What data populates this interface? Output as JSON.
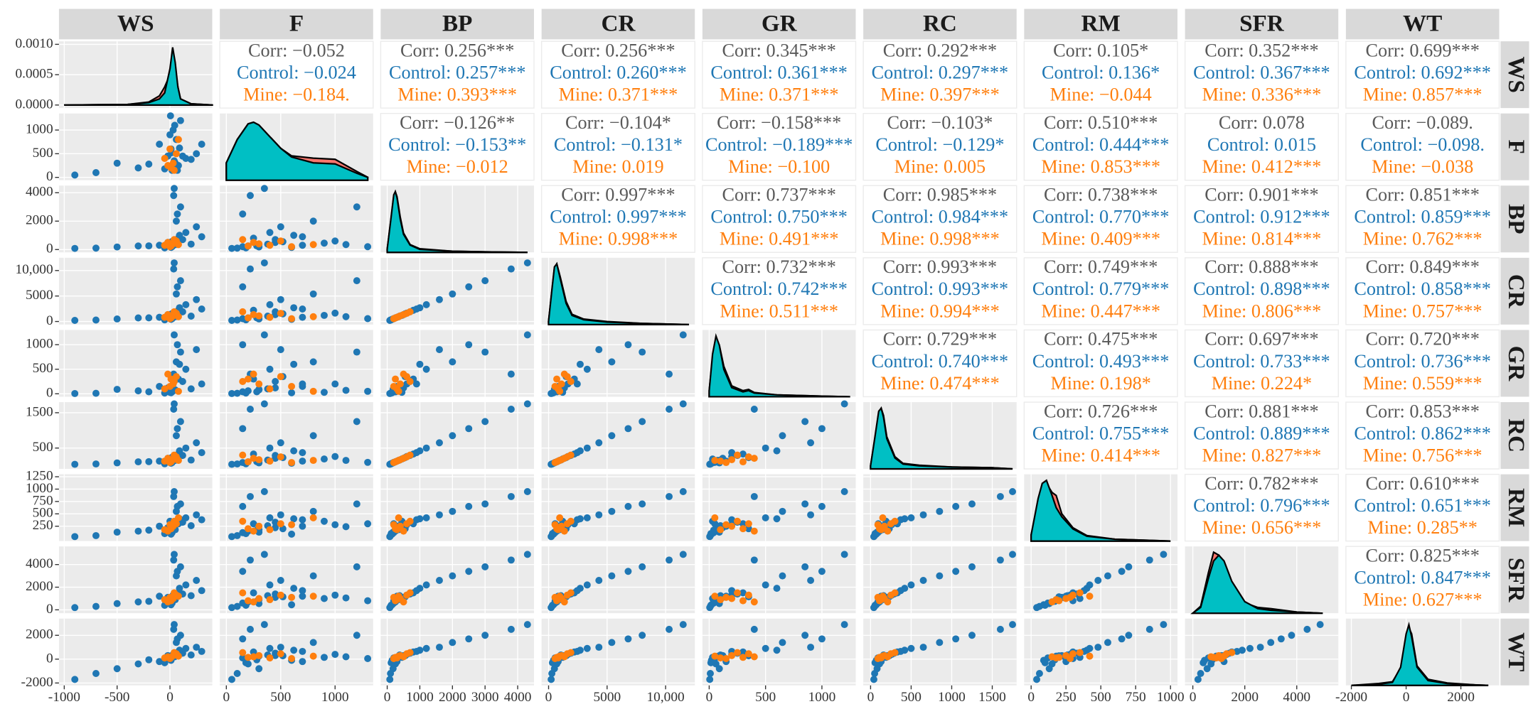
{
  "chart_data": {
    "type": "pairs",
    "variables": [
      {
        "name": "WS",
        "xlim": [
          -1050,
          400
        ],
        "xticks": [
          -1000,
          -500,
          0
        ],
        "ylim": [
          -5e-05,
          0.00105
        ],
        "yticks": [
          {
            "value": 0,
            "label": "0.0000"
          },
          {
            "value": 0.0005,
            "label": "0.0005"
          },
          {
            "value": 0.001,
            "label": "0.0010"
          }
        ]
      },
      {
        "name": "F",
        "xlim": [
          -60,
          1350
        ],
        "xticks": [
          0,
          500,
          1000
        ],
        "ylim": [
          -60,
          1350
        ],
        "yticks": [
          0,
          500,
          1000
        ]
      },
      {
        "name": "BP",
        "xlim": [
          -200,
          4500
        ],
        "xticks": [
          0,
          1000,
          2000,
          3000,
          4000
        ],
        "ylim": [
          -200,
          4500
        ],
        "yticks": [
          0,
          2000,
          4000
        ]
      },
      {
        "name": "CR",
        "xlim": [
          -600,
          12500
        ],
        "xticks": [
          0,
          5000,
          {
            "value": 10000,
            "label": "10,000"
          }
        ],
        "ylim": [
          -600,
          12500
        ],
        "yticks": [
          0,
          5000,
          {
            "value": 10000,
            "label": "10,000"
          }
        ]
      },
      {
        "name": "GR",
        "xlim": [
          -60,
          1300
        ],
        "xticks": [
          0,
          500,
          1000
        ],
        "ylim": [
          -60,
          1300
        ],
        "yticks": [
          0,
          500,
          1000
        ]
      },
      {
        "name": "RC",
        "xlim": [
          -90,
          1800
        ],
        "xticks": [
          0,
          500,
          1000,
          1500
        ],
        "ylim": [
          -90,
          1800
        ],
        "yticks": [
          500,
          1500
        ]
      },
      {
        "name": "RM",
        "xlim": [
          -50,
          1050
        ],
        "xticks": [
          0,
          250,
          500,
          750,
          1000
        ],
        "ylim": [
          -50,
          1300
        ],
        "yticks": [
          250,
          500,
          750,
          1000,
          1250
        ]
      },
      {
        "name": "SFR",
        "xlim": [
          -300,
          5600
        ],
        "xticks": [
          0,
          2000,
          4000
        ],
        "ylim": [
          -300,
          5600
        ],
        "yticks": [
          0,
          2000,
          4000
        ]
      },
      {
        "name": "WT",
        "xlim": [
          -2200,
          3400
        ],
        "xticks": [
          -2000,
          0,
          2000
        ],
        "ylim": [
          -2200,
          3400
        ],
        "yticks": [
          -2000,
          0,
          2000
        ]
      }
    ],
    "upper": [
      [
        [
          "Corr: −0.052",
          "Control: −0.024",
          "Mine: −0.184."
        ],
        [
          "Corr: 0.256***",
          "Control: 0.257***",
          "Mine: 0.393***"
        ],
        [
          "Corr: 0.256***",
          "Control: 0.260***",
          "Mine: 0.371***"
        ],
        [
          "Corr: 0.345***",
          "Control: 0.361***",
          "Mine: 0.371***"
        ],
        [
          "Corr: 0.292***",
          "Control: 0.297***",
          "Mine: 0.397***"
        ],
        [
          "Corr: 0.105*",
          "Control: 0.136*",
          "Mine: −0.044"
        ],
        [
          "Corr: 0.352***",
          "Control: 0.367***",
          "Mine: 0.336***"
        ],
        [
          "Corr: 0.699***",
          "Control: 0.692***",
          "Mine: 0.857***"
        ]
      ],
      [
        [
          "Corr: −0.126**",
          "Control: −0.153**",
          "Mine: −0.012"
        ],
        [
          "Corr: −0.104*",
          "Control: −0.131*",
          "Mine: 0.019"
        ],
        [
          "Corr: −0.158***",
          "Control: −0.189***",
          "Mine: −0.100"
        ],
        [
          "Corr: −0.103*",
          "Control: −0.129*",
          "Mine: 0.005"
        ],
        [
          "Corr: 0.510***",
          "Control: 0.444***",
          "Mine: 0.853***"
        ],
        [
          "Corr: 0.078",
          "Control: 0.015",
          "Mine: 0.412***"
        ],
        [
          "Corr: −0.089.",
          "Control: −0.098.",
          "Mine: −0.038"
        ]
      ],
      [
        [
          "Corr: 0.997***",
          "Control: 0.997***",
          "Mine: 0.998***"
        ],
        [
          "Corr: 0.737***",
          "Control: 0.750***",
          "Mine: 0.491***"
        ],
        [
          "Corr: 0.985***",
          "Control: 0.984***",
          "Mine: 0.998***"
        ],
        [
          "Corr: 0.738***",
          "Control: 0.770***",
          "Mine: 0.409***"
        ],
        [
          "Corr: 0.901***",
          "Control: 0.912***",
          "Mine: 0.814***"
        ],
        [
          "Corr: 0.851***",
          "Control: 0.859***",
          "Mine: 0.762***"
        ]
      ],
      [
        [
          "Corr: 0.732***",
          "Control: 0.742***",
          "Mine: 0.511***"
        ],
        [
          "Corr: 0.993***",
          "Control: 0.993***",
          "Mine: 0.994***"
        ],
        [
          "Corr: 0.749***",
          "Control: 0.779***",
          "Mine: 0.447***"
        ],
        [
          "Corr: 0.888***",
          "Control: 0.898***",
          "Mine: 0.806***"
        ],
        [
          "Corr: 0.849***",
          "Control: 0.858***",
          "Mine: 0.757***"
        ]
      ],
      [
        [
          "Corr: 0.729***",
          "Control: 0.740***",
          "Mine: 0.474***"
        ],
        [
          "Corr: 0.475***",
          "Control: 0.493***",
          "Mine: 0.198*"
        ],
        [
          "Corr: 0.697***",
          "Control: 0.733***",
          "Mine: 0.224*"
        ],
        [
          "Corr: 0.720***",
          "Control: 0.736***",
          "Mine: 0.559***"
        ]
      ],
      [
        [
          "Corr: 0.726***",
          "Control: 0.755***",
          "Mine: 0.414***"
        ],
        [
          "Corr: 0.881***",
          "Control: 0.889***",
          "Mine: 0.827***"
        ],
        [
          "Corr: 0.853***",
          "Control: 0.862***",
          "Mine: 0.756***"
        ]
      ],
      [
        [
          "Corr: 0.782***",
          "Control: 0.796***",
          "Mine: 0.656***"
        ],
        [
          "Corr: 0.610***",
          "Control: 0.651***",
          "Mine: 0.285**"
        ]
      ],
      [
        [
          "Corr: 0.825***",
          "Control: 0.847***",
          "Mine: 0.627***"
        ]
      ]
    ],
    "text_colors": [
      "#595959",
      "#1f77b4",
      "#ff7f0e"
    ],
    "point_colors": {
      "control": "#1f77b4",
      "mine": "#ff7f0e"
    },
    "control": [
      [
        20,
        150,
        200,
        550,
        40,
        90,
        120,
        600,
        100
      ],
      [
        50,
        300,
        350,
        950,
        80,
        150,
        180,
        900,
        250
      ],
      [
        -20,
        450,
        500,
        1350,
        120,
        210,
        220,
        1100,
        300
      ],
      [
        80,
        250,
        800,
        2200,
        300,
        330,
        300,
        1500,
        600
      ],
      [
        10,
        600,
        150,
        420,
        20,
        70,
        90,
        450,
        -100
      ],
      [
        -300,
        200,
        250,
        700,
        60,
        110,
        150,
        700,
        -400
      ],
      [
        -700,
        100,
        100,
        280,
        10,
        50,
        60,
        300,
        -1200
      ],
      [
        -900,
        50,
        80,
        220,
        5,
        40,
        40,
        200,
        -1700
      ],
      [
        150,
        400,
        1200,
        3300,
        500,
        500,
        420,
        2200,
        900
      ],
      [
        60,
        800,
        2000,
        5400,
        650,
        850,
        550,
        3000,
        1400
      ],
      [
        30,
        1000,
        600,
        1650,
        200,
        260,
        280,
        1300,
        400
      ],
      [
        100,
        1200,
        3000,
        8000,
        850,
        1250,
        700,
        3800,
        2000
      ],
      [
        40,
        350,
        4300,
        11500,
        1200,
        1750,
        950,
        4900,
        2900
      ],
      [
        250,
        500,
        1600,
        4300,
        900,
        650,
        480,
        2600,
        1000
      ],
      [
        -100,
        700,
        300,
        820,
        150,
        130,
        250,
        1200,
        -200
      ],
      [
        0,
        900,
        450,
        1200,
        30,
        190,
        350,
        1000,
        150
      ],
      [
        70,
        150,
        2500,
        6800,
        1000,
        1050,
        650,
        3400,
        1700
      ],
      [
        5,
        1300,
        200,
        560,
        50,
        95,
        300,
        800,
        50
      ],
      [
        -500,
        300,
        180,
        500,
        90,
        80,
        130,
        550,
        -800
      ],
      [
        120,
        450,
        700,
        1900,
        250,
        290,
        330,
        1400,
        500
      ],
      [
        35,
        220,
        3800,
        10300,
        400,
        1600,
        850,
        4400,
        2500
      ],
      [
        90,
        620,
        1000,
        2700,
        600,
        420,
        400,
        1900,
        750
      ],
      [
        -50,
        180,
        120,
        330,
        15,
        55,
        100,
        400,
        -300
      ],
      [
        200,
        380,
        380,
        1050,
        100,
        160,
        260,
        1250,
        350
      ],
      [
        15,
        520,
        550,
        1500,
        350,
        230,
        200,
        1150,
        280
      ],
      [
        -200,
        280,
        260,
        720,
        40,
        115,
        170,
        750,
        -50
      ],
      [
        300,
        700,
        900,
        2450,
        200,
        370,
        380,
        1700,
        650
      ],
      [
        45,
        1100,
        350,
        950,
        70,
        150,
        240,
        1050,
        200
      ]
    ],
    "mine": [
      [
        30,
        300,
        400,
        1100,
        200,
        170,
        250,
        1000,
        300
      ],
      [
        10,
        200,
        250,
        700,
        300,
        110,
        200,
        800,
        150
      ],
      [
        60,
        500,
        600,
        1600,
        350,
        250,
        300,
        1300,
        450
      ],
      [
        -50,
        400,
        300,
        820,
        100,
        130,
        180,
        900,
        100
      ],
      [
        40,
        150,
        700,
        1900,
        250,
        300,
        350,
        1500,
        550
      ],
      [
        0,
        600,
        200,
        550,
        150,
        90,
        280,
        1100,
        50
      ],
      [
        80,
        800,
        350,
        950,
        50,
        150,
        420,
        1200,
        250
      ],
      [
        -20,
        250,
        500,
        1350,
        400,
        210,
        150,
        700,
        200
      ]
    ],
    "density_colors": {
      "red": "#f8766d",
      "teal": "#00bfc4"
    },
    "density": [
      {
        "x": [
          -1000,
          -400,
          -200,
          -100,
          -50,
          0,
          25,
          50,
          75,
          100,
          200,
          400
        ],
        "red": [
          0,
          1e-05,
          5e-05,
          0.00015,
          0.0003,
          0.0005,
          0.0007,
          0.0006,
          0.0003,
          0.0001,
          2e-05,
          0
        ],
        "teal": [
          0,
          1e-05,
          4e-05,
          0.0001,
          0.0002,
          0.0006,
          0.00095,
          0.0007,
          0.0003,
          0.0001,
          2e-05,
          0
        ]
      },
      {
        "x": [
          0,
          100,
          200,
          250,
          300,
          400,
          500,
          600,
          800,
          1000,
          1200,
          1300
        ],
        "red": [
          0.3,
          0.7,
          0.97,
          1,
          0.95,
          0.75,
          0.55,
          0.42,
          0.38,
          0.36,
          0.15,
          0.05
        ],
        "teal": [
          0.3,
          0.7,
          0.97,
          1,
          0.95,
          0.75,
          0.55,
          0.4,
          0.3,
          0.28,
          0.12,
          0.05
        ],
        "ylim": [
          0,
          1.15
        ]
      },
      {
        "x": [
          0,
          100,
          200,
          250,
          300,
          400,
          500,
          700,
          1000,
          2000,
          3000,
          4300
        ],
        "red": [
          0.05,
          0.48,
          0.93,
          1,
          0.92,
          0.58,
          0.32,
          0.13,
          0.06,
          0.02,
          0.01,
          0
        ],
        "teal": [
          0.05,
          0.5,
          0.95,
          1,
          0.9,
          0.55,
          0.3,
          0.12,
          0.05,
          0.02,
          0.01,
          0
        ],
        "ylim": [
          0,
          1.1
        ]
      },
      {
        "x": [
          0,
          300,
          500,
          700,
          1000,
          1500,
          2000,
          3000,
          5000,
          8000,
          12000
        ],
        "red": [
          0.05,
          0.58,
          0.93,
          1,
          0.78,
          0.38,
          0.17,
          0.09,
          0.05,
          0.02,
          0
        ],
        "teal": [
          0.05,
          0.6,
          0.95,
          1,
          0.75,
          0.35,
          0.15,
          0.08,
          0.04,
          0.02,
          0
        ],
        "ylim": [
          0,
          1.1
        ]
      },
      {
        "x": [
          0,
          30,
          60,
          90,
          130,
          200,
          300,
          350,
          400,
          600,
          1000,
          1250
        ],
        "red": [
          0.1,
          0.65,
          0.95,
          0.85,
          0.5,
          0.18,
          0.1,
          0.12,
          0.07,
          0.03,
          0.01,
          0
        ],
        "teal": [
          0.1,
          0.7,
          1,
          0.85,
          0.45,
          0.15,
          0.08,
          0.1,
          0.06,
          0.03,
          0.01,
          0
        ],
        "ylim": [
          0,
          1.1
        ]
      },
      {
        "x": [
          0,
          50,
          100,
          130,
          160,
          200,
          300,
          400,
          600,
          1000,
          1500,
          1750
        ],
        "red": [
          0.05,
          0.48,
          0.93,
          1,
          0.88,
          0.53,
          0.2,
          0.09,
          0.06,
          0.03,
          0.02,
          0
        ],
        "teal": [
          0.05,
          0.5,
          0.95,
          1,
          0.85,
          0.5,
          0.18,
          0.08,
          0.05,
          0.03,
          0.02,
          0
        ],
        "ylim": [
          0,
          1.1
        ]
      },
      {
        "x": [
          0,
          50,
          80,
          110,
          150,
          180,
          220,
          300,
          400,
          600,
          1000
        ],
        "red": [
          0.1,
          0.65,
          0.9,
          0.95,
          0.8,
          0.75,
          0.45,
          0.22,
          0.09,
          0.03,
          0
        ],
        "teal": [
          0.1,
          0.7,
          0.95,
          1,
          0.75,
          0.55,
          0.4,
          0.2,
          0.08,
          0.03,
          0
        ],
        "ylim": [
          0,
          1.1
        ]
      },
      {
        "x": [
          0,
          300,
          600,
          800,
          1000,
          1200,
          1500,
          2000,
          2500,
          3000,
          4000,
          5000
        ],
        "red": [
          0,
          0.12,
          0.7,
          1.05,
          1,
          0.85,
          0.5,
          0.18,
          0.1,
          0.08,
          0.02,
          0
        ],
        "teal": [
          0,
          0.1,
          0.6,
          0.9,
          1,
          0.9,
          0.55,
          0.2,
          0.08,
          0.05,
          0.02,
          0
        ],
        "ylim": [
          0,
          1.15
        ]
      },
      {
        "x": [
          -2000,
          -1000,
          -500,
          -200,
          0,
          100,
          200,
          400,
          800,
          1500,
          2500,
          3000
        ],
        "red": [
          0,
          0.03,
          0.06,
          0.28,
          0.8,
          0.95,
          0.85,
          0.32,
          0.1,
          0.04,
          0.01,
          0
        ],
        "teal": [
          0,
          0.02,
          0.05,
          0.3,
          0.85,
          1,
          0.8,
          0.3,
          0.08,
          0.03,
          0.01,
          0
        ],
        "ylim": [
          0,
          1.1
        ]
      }
    ]
  }
}
